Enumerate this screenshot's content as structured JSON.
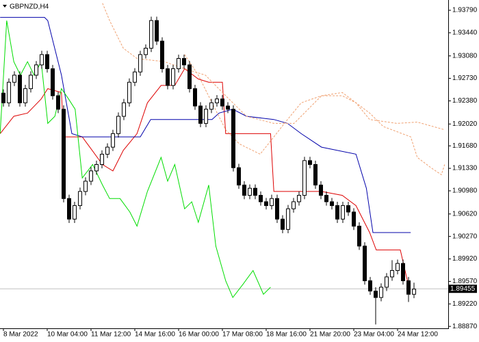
{
  "chart_data": {
    "type": "candlestick",
    "title": "GBPNZD,H4",
    "categories": [
      "8 Mar 2022",
      null,
      null,
      null,
      null,
      null,
      null,
      null,
      "10 Mar 04:00",
      null,
      null,
      null,
      null,
      null,
      null,
      null,
      "11 Mar 12:00",
      null,
      null,
      null,
      null,
      null,
      null,
      null,
      "14 Mar 16:00",
      null,
      null,
      null,
      null,
      null,
      null,
      null,
      "16 Mar 00:00",
      null,
      null,
      null,
      null,
      null,
      null,
      null,
      "17 Mar 08:00",
      null,
      null,
      null,
      null,
      null,
      null,
      null,
      "18 Mar 16:00",
      null,
      null,
      null,
      null,
      null,
      null,
      null,
      "21 Mar 20:00",
      null,
      null,
      null,
      null,
      null,
      null,
      null,
      "23 Mar 04:00",
      null,
      null,
      null,
      null,
      null,
      null,
      null,
      "24 Mar 12:00",
      null,
      null,
      null
    ],
    "open": [
      1.925,
      1.9235,
      1.9267,
      1.9278,
      1.9235,
      1.9257,
      1.9278,
      1.9294,
      1.931,
      1.9288,
      1.9246,
      1.9225,
      1.9086,
      1.9054,
      1.9075,
      1.9097,
      1.9113,
      1.9129,
      1.9139,
      1.9155,
      1.9166,
      1.9187,
      1.9214,
      1.9235,
      1.9267,
      1.9283,
      1.931,
      1.932,
      1.9363,
      1.9331,
      1.9288,
      1.9262,
      1.9288,
      1.9304,
      1.9294,
      1.9257,
      1.923,
      1.9203,
      1.9225,
      1.9235,
      1.9241,
      1.923,
      1.9225,
      1.9134,
      1.9107,
      1.9091,
      1.9102,
      1.9091,
      1.9081,
      1.9075,
      1.9086,
      1.9054,
      1.9038,
      1.907,
      1.9081,
      1.9091,
      1.9145,
      1.9139,
      1.9107,
      1.9091,
      1.9081,
      1.9075,
      1.9054,
      1.9075,
      1.9065,
      1.9043,
      1.9012,
      1.8958,
      1.8942,
      1.8932,
      1.8948,
      1.8964,
      1.8974,
      1.8985,
      1.8958,
      1.8937
    ],
    "high": [
      1.9256,
      1.9273,
      1.9284,
      1.9284,
      1.9263,
      1.9284,
      1.93,
      1.9316,
      1.9316,
      1.9294,
      1.9252,
      1.9231,
      1.9092,
      1.9081,
      1.9103,
      1.9119,
      1.9135,
      1.9145,
      1.9161,
      1.9172,
      1.9193,
      1.922,
      1.9241,
      1.9273,
      1.9289,
      1.9316,
      1.9326,
      1.9369,
      1.9369,
      1.9337,
      1.9294,
      1.9294,
      1.931,
      1.931,
      1.93,
      1.9263,
      1.9236,
      1.9231,
      1.9241,
      1.9247,
      1.9247,
      1.9236,
      1.9231,
      1.914,
      1.9113,
      1.9108,
      1.9108,
      1.9097,
      1.9087,
      1.9092,
      1.9092,
      1.906,
      1.9076,
      1.9087,
      1.9097,
      1.9151,
      1.9151,
      1.9145,
      1.9113,
      1.9097,
      1.9087,
      1.9081,
      1.9081,
      1.9081,
      1.9071,
      1.9049,
      1.9018,
      1.8964,
      1.8948,
      1.8954,
      1.897,
      1.899,
      1.8991,
      1.8991,
      1.8964,
      1.8955
    ],
    "low": [
      1.9229,
      1.9229,
      1.9261,
      1.9229,
      1.9229,
      1.9251,
      1.9272,
      1.9288,
      1.9282,
      1.924,
      1.9219,
      1.908,
      1.9048,
      1.9048,
      1.9069,
      1.9091,
      1.9107,
      1.9123,
      1.9133,
      1.9149,
      1.916,
      1.9181,
      1.9208,
      1.9229,
      1.9261,
      1.9277,
      1.9304,
      1.9314,
      1.9325,
      1.9282,
      1.9256,
      1.9256,
      1.9282,
      1.9288,
      1.9251,
      1.9224,
      1.9197,
      1.9197,
      1.9219,
      1.9229,
      1.9224,
      1.9219,
      1.9128,
      1.9101,
      1.9085,
      1.9085,
      1.9085,
      1.9075,
      1.9069,
      1.9069,
      1.9048,
      1.9032,
      1.9032,
      1.9064,
      1.9075,
      1.9085,
      1.9133,
      1.9101,
      1.9085,
      1.9075,
      1.9069,
      1.9048,
      1.9048,
      1.9059,
      1.9037,
      1.9006,
      1.8952,
      1.8936,
      1.889,
      1.8926,
      1.8942,
      1.8958,
      1.8968,
      1.8952,
      1.8925,
      1.8931
    ],
    "close": [
      1.9235,
      1.9267,
      1.9278,
      1.9235,
      1.9257,
      1.9278,
      1.9294,
      1.931,
      1.9288,
      1.9246,
      1.9225,
      1.9086,
      1.9054,
      1.9075,
      1.9097,
      1.9113,
      1.9129,
      1.9139,
      1.9155,
      1.9166,
      1.9187,
      1.9214,
      1.9235,
      1.9267,
      1.9283,
      1.931,
      1.932,
      1.9363,
      1.9331,
      1.9288,
      1.9262,
      1.9288,
      1.9304,
      1.9294,
      1.9257,
      1.923,
      1.9203,
      1.9225,
      1.9235,
      1.9241,
      1.923,
      1.9225,
      1.9134,
      1.9107,
      1.9091,
      1.9102,
      1.9091,
      1.9081,
      1.9075,
      1.9086,
      1.9054,
      1.9038,
      1.907,
      1.9081,
      1.9091,
      1.9145,
      1.9139,
      1.9107,
      1.9091,
      1.9081,
      1.9075,
      1.9054,
      1.9075,
      1.9065,
      1.9043,
      1.9012,
      1.8958,
      1.8942,
      1.8932,
      1.8948,
      1.8964,
      1.8974,
      1.8985,
      1.8958,
      1.8937,
      1.8945
    ],
    "up_color": "#ffffff",
    "down_color": "#000000",
    "lines": [
      {
        "color": "#dd0000",
        "style": "solid",
        "x": [
          -0.6,
          1.9,
          4.4,
          6.9,
          8.1,
          10.6,
          11,
          14.4,
          18.1,
          20,
          21.9,
          24.4,
          26.3,
          28.8,
          31.3,
          33.1,
          35.6,
          37.5,
          40,
          40.6,
          48.8,
          49.4,
          58.1,
          61.9,
          64.4,
          66.9,
          68.1,
          72.5,
          73.8
        ],
        "values": [
          1.9187,
          1.9214,
          1.9219,
          1.9241,
          1.9257,
          1.9251,
          1.9182,
          1.9182,
          1.9139,
          1.9129,
          1.9161,
          1.9187,
          1.9235,
          1.9262,
          1.9262,
          1.9288,
          1.9272,
          1.9267,
          1.9267,
          1.9187,
          1.9187,
          1.9097,
          1.9097,
          1.9091,
          1.9075,
          1.9033,
          1.9006,
          1.9006,
          1.8958
        ]
      },
      {
        "color": "#0000aa",
        "style": "solid",
        "x": [
          -0.6,
          7.5,
          8.1,
          10.6,
          12.5,
          14.4,
          25,
          26.9,
          38.1,
          39.4,
          41.9,
          44.4,
          49.4,
          51.9,
          54.4,
          58.1,
          64.4,
          66.3,
          67.5,
          74.4
        ],
        "values": [
          1.9368,
          1.9368,
          1.9363,
          1.9278,
          1.9187,
          1.9182,
          1.9182,
          1.9209,
          1.9209,
          1.9219,
          1.9225,
          1.9214,
          1.9209,
          1.9203,
          1.9187,
          1.9166,
          1.9155,
          1.9102,
          1.9033,
          1.9033
        ]
      },
      {
        "color": "#00dd00",
        "style": "solid",
        "x": [
          -0.6,
          0.6,
          1.9,
          3.1,
          4.4,
          5.6,
          6.9,
          8.1,
          9.4,
          10.6,
          11.9,
          13.1,
          14.4,
          16.3,
          18.1,
          19.4,
          21.3,
          23.1,
          24.4,
          26.3,
          28.8,
          30,
          31.3,
          33.1,
          34.4,
          35.6,
          37.5,
          38.8,
          40.6,
          41.9,
          43.8,
          45.6,
          47.5,
          48.8
        ],
        "values": [
          1.9187,
          1.9363,
          1.9299,
          1.9278,
          1.9299,
          1.9278,
          1.9299,
          1.9203,
          1.9214,
          1.9257,
          1.9241,
          1.9225,
          1.9118,
          1.9139,
          1.9107,
          1.9086,
          1.9086,
          1.9065,
          1.9043,
          1.9097,
          1.915,
          1.9113,
          1.9139,
          1.907,
          1.9081,
          1.9049,
          1.9107,
          1.9012,
          1.8958,
          1.8932,
          1.8953,
          1.8974,
          1.8937,
          1.8948
        ]
      },
      {
        "color": "#f0a070",
        "style": "dashed",
        "x": [
          18.1,
          19.4,
          21.9,
          24.4,
          29.4,
          33.1,
          36.9,
          40.6,
          44.4,
          49.4,
          53.1,
          58.1,
          61.9,
          64.4,
          66.9,
          71.9,
          75.6,
          80.6
        ],
        "values": [
          1.939,
          1.9363,
          1.932,
          1.9304,
          1.9299,
          1.9288,
          1.9278,
          1.9246,
          1.9214,
          1.9203,
          1.9203,
          1.9246,
          1.9246,
          1.9235,
          1.9209,
          1.9203,
          1.9205,
          1.9193
        ]
      },
      {
        "color": "#f0a070",
        "style": "dashed",
        "x": [
          33.1,
          35.6,
          38.1,
          40.6,
          43.1,
          46.9,
          49.4,
          51.9,
          54.4,
          58.1,
          61.9,
          64.4,
          66.9,
          69.4,
          74.4,
          75.6,
          78.1,
          80,
          80.6
        ],
        "values": [
          1.931,
          1.9278,
          1.9235,
          1.9193,
          1.9171,
          1.9155,
          1.9182,
          1.9209,
          1.9235,
          1.9246,
          1.9251,
          1.9235,
          1.9219,
          1.9198,
          1.9182,
          1.915,
          1.9134,
          1.9123,
          1.9139
        ]
      }
    ],
    "last_price": 1.89455,
    "xlim": [
      -0.625,
      80.625
    ],
    "ylim": [
      1.8884,
      1.9395
    ],
    "yticks": [
      {
        "value": 1.9379,
        "label": "1.93790"
      },
      {
        "value": 1.9344,
        "label": "1.93440"
      },
      {
        "value": 1.9308,
        "label": "1.93080"
      },
      {
        "value": 1.9273,
        "label": "1.92730"
      },
      {
        "value": 1.9238,
        "label": "1.92380"
      },
      {
        "value": 1.9202,
        "label": "1.92020"
      },
      {
        "value": 1.9168,
        "label": "1.91680"
      },
      {
        "value": 1.9133,
        "label": "1.91330"
      },
      {
        "value": 1.9098,
        "label": "1.90980"
      },
      {
        "value": 1.9062,
        "label": "1.90620"
      },
      {
        "value": 1.9027,
        "label": "1.90270"
      },
      {
        "value": 1.8992,
        "label": "1.89920"
      },
      {
        "value": 1.8957,
        "label": "1.89570"
      },
      {
        "value": 1.8922,
        "label": "1.89220"
      },
      {
        "value": 1.8887,
        "label": "1.88870"
      }
    ]
  }
}
